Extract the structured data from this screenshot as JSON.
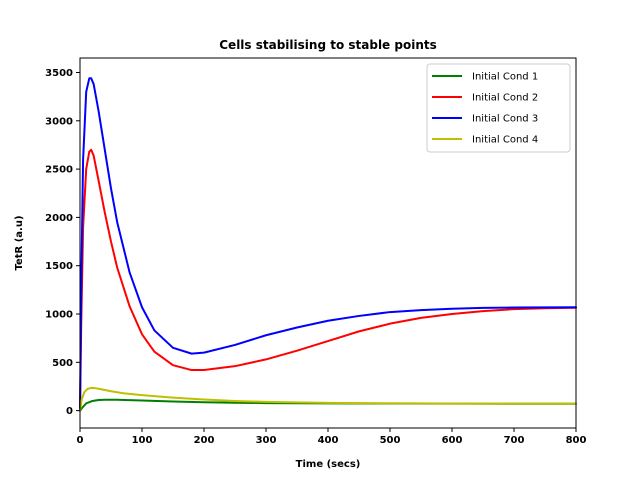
{
  "chart_data": {
    "type": "line",
    "title": "Cells stabilising to stable points",
    "xlabel": "Time (secs)",
    "ylabel": "TetR (a.u)",
    "xlim": [
      0,
      800
    ],
    "ylim": [
      -180,
      3650
    ],
    "xticks": [
      0,
      100,
      200,
      300,
      400,
      500,
      600,
      700,
      800
    ],
    "yticks": [
      0,
      500,
      1000,
      1500,
      2000,
      2500,
      3000,
      3500
    ],
    "grid": false,
    "legend_position": "upper right",
    "series": [
      {
        "name": "Initial Cond 1",
        "color": "#008000",
        "x": [
          0,
          5,
          10,
          20,
          30,
          40,
          60,
          80,
          100,
          150,
          200,
          250,
          300,
          400,
          500,
          600,
          700,
          800
        ],
        "y": [
          0,
          40,
          75,
          100,
          110,
          113,
          112,
          108,
          104,
          94,
          87,
          82,
          78,
          75,
          73,
          72,
          71,
          71
        ]
      },
      {
        "name": "Initial Cond 2",
        "color": "#ff0000",
        "x": [
          0,
          2,
          5,
          10,
          15,
          18,
          22,
          30,
          40,
          50,
          60,
          80,
          100,
          120,
          150,
          180,
          200,
          250,
          300,
          350,
          400,
          450,
          500,
          550,
          600,
          650,
          700,
          750,
          800
        ],
        "y": [
          0,
          900,
          1900,
          2500,
          2680,
          2700,
          2640,
          2380,
          2050,
          1750,
          1480,
          1080,
          790,
          610,
          470,
          420,
          420,
          460,
          530,
          620,
          720,
          820,
          900,
          960,
          1000,
          1030,
          1050,
          1060,
          1065
        ]
      },
      {
        "name": "Initial Cond 3",
        "color": "#0000ff",
        "x": [
          0,
          2,
          5,
          10,
          15,
          18,
          22,
          30,
          40,
          50,
          60,
          80,
          100,
          120,
          150,
          180,
          200,
          250,
          300,
          350,
          400,
          450,
          500,
          550,
          600,
          650,
          700,
          750,
          800
        ],
        "y": [
          0,
          1300,
          2600,
          3300,
          3440,
          3440,
          3380,
          3100,
          2700,
          2300,
          1950,
          1430,
          1070,
          830,
          650,
          590,
          600,
          680,
          780,
          860,
          930,
          980,
          1020,
          1040,
          1055,
          1063,
          1067,
          1069,
          1070
        ]
      },
      {
        "name": "Initial Cond 4",
        "color": "#bfbf00",
        "x": [
          0,
          3,
          7,
          12,
          18,
          25,
          35,
          50,
          70,
          100,
          150,
          200,
          250,
          300,
          400,
          500,
          600,
          700,
          800
        ],
        "y": [
          0,
          120,
          190,
          225,
          235,
          232,
          220,
          200,
          180,
          160,
          135,
          115,
          100,
          90,
          80,
          76,
          74,
          73,
          72
        ]
      }
    ]
  }
}
